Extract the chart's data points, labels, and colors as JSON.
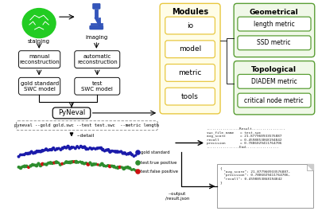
{
  "bg_color": "#ffffff",
  "modules": [
    "io",
    "model",
    "metric",
    "tools"
  ],
  "geometrical_title": "Geometrical",
  "geometrical_metrics": [
    "length metric",
    "SSD metric"
  ],
  "topological_title": "Topological",
  "topological_metrics": [
    "DIADEM metric",
    "critical node metric"
  ],
  "cmd_text": "pyneval --gold gold.swc --test test.swc  --metric length",
  "detail_text": "--detail",
  "result_text": "................Result................\nswc_file_name   = test.swc\navg_score       = 21.877960933576887\nrecall          = 0.4598853868194842\nprecision       = 0.7886029411764706\n................End................",
  "json_text": "{\n  \"avg_score\": 21.877960933576887,\n  \"precision\": 0.7886029411764706,\n  \"recall\": 0.4598853868194842\n}",
  "output_text": "--output\n/result.json",
  "legend_gold": "gold standard",
  "legend_true": "test:true positive",
  "legend_false": "test:false positive",
  "color_gold": "#1a1aaa",
  "color_true": "#2d8c2d",
  "color_false": "#cc1111",
  "staining_text": "staining",
  "imaging_text": "imaging",
  "modules_bg": "#fffde7",
  "modules_border": "#e8c840",
  "geo_bg": "#f0f8e8",
  "geo_border": "#5a9e35",
  "box_border": "#111111",
  "arrow_color": "#111111"
}
